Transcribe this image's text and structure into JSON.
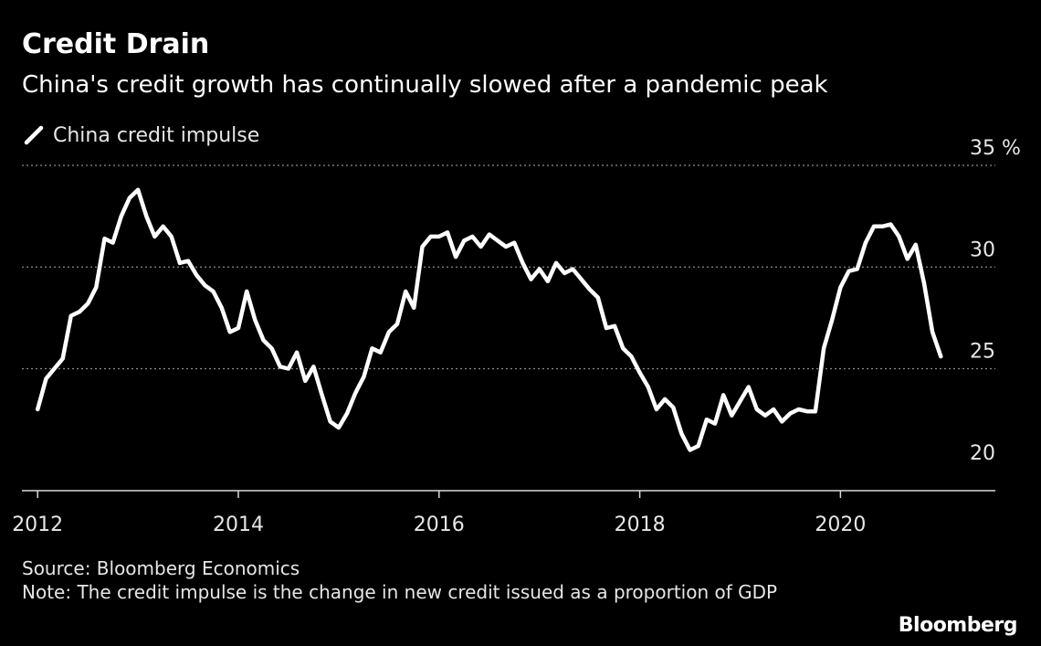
{
  "header": {
    "title": "Credit Drain",
    "subtitle": "China's credit growth has continually slowed after a pandemic peak"
  },
  "footer": {
    "source": "Source: Bloomberg Economics",
    "note": "Note: The credit impulse is the change in new credit issued as a proportion of GDP"
  },
  "brand": "Bloomberg",
  "chart_data": {
    "type": "line",
    "title": "Credit Drain",
    "subtitle": "China's credit growth has continually slowed after a pandemic peak",
    "xlabel": "",
    "ylabel": "",
    "y_unit": "%",
    "x_ticks": [
      "2012",
      "2014",
      "2016",
      "2018",
      "2020"
    ],
    "y_ticks": [
      20,
      25,
      30,
      35
    ],
    "xlim": [
      "2012-01",
      "2021-06"
    ],
    "ylim": [
      19,
      35
    ],
    "grid": "horizontal dotted",
    "axis_side": "right",
    "legend_placement": "top-left",
    "colors": {
      "background": "#000000",
      "line": "#ffffff",
      "grid": "#8c8c8c",
      "text": "#e6e6e6"
    },
    "series": [
      {
        "name": "China credit impulse",
        "points": [
          [
            "2012-01",
            23.0
          ],
          [
            "2012-02",
            24.5
          ],
          [
            "2012-03",
            25.0
          ],
          [
            "2012-04",
            25.5
          ],
          [
            "2012-05",
            27.6
          ],
          [
            "2012-06",
            27.8
          ],
          [
            "2012-07",
            28.2
          ],
          [
            "2012-08",
            29.0
          ],
          [
            "2012-09",
            31.4
          ],
          [
            "2012-10",
            31.2
          ],
          [
            "2012-11",
            32.5
          ],
          [
            "2012-12",
            33.4
          ],
          [
            "2013-01",
            33.8
          ],
          [
            "2013-02",
            32.5
          ],
          [
            "2013-03",
            31.5
          ],
          [
            "2013-04",
            32.0
          ],
          [
            "2013-05",
            31.5
          ],
          [
            "2013-06",
            30.2
          ],
          [
            "2013-07",
            30.3
          ],
          [
            "2013-08",
            29.6
          ],
          [
            "2013-09",
            29.1
          ],
          [
            "2013-10",
            28.8
          ],
          [
            "2013-11",
            28.0
          ],
          [
            "2013-12",
            26.8
          ],
          [
            "2014-01",
            27.0
          ],
          [
            "2014-02",
            28.8
          ],
          [
            "2014-03",
            27.4
          ],
          [
            "2014-04",
            26.4
          ],
          [
            "2014-05",
            26.0
          ],
          [
            "2014-06",
            25.1
          ],
          [
            "2014-07",
            25.0
          ],
          [
            "2014-08",
            25.8
          ],
          [
            "2014-09",
            24.4
          ],
          [
            "2014-10",
            25.1
          ],
          [
            "2014-11",
            23.7
          ],
          [
            "2014-12",
            22.4
          ],
          [
            "2015-01",
            22.1
          ],
          [
            "2015-02",
            22.8
          ],
          [
            "2015-03",
            23.8
          ],
          [
            "2015-04",
            24.6
          ],
          [
            "2015-05",
            26.0
          ],
          [
            "2015-06",
            25.8
          ],
          [
            "2015-07",
            26.8
          ],
          [
            "2015-08",
            27.2
          ],
          [
            "2015-09",
            28.8
          ],
          [
            "2015-10",
            28.0
          ],
          [
            "2015-11",
            31.0
          ],
          [
            "2015-12",
            31.5
          ],
          [
            "2016-01",
            31.5
          ],
          [
            "2016-02",
            31.7
          ],
          [
            "2016-03",
            30.5
          ],
          [
            "2016-04",
            31.3
          ],
          [
            "2016-05",
            31.5
          ],
          [
            "2016-06",
            31.0
          ],
          [
            "2016-07",
            31.6
          ],
          [
            "2016-08",
            31.3
          ],
          [
            "2016-09",
            31.0
          ],
          [
            "2016-10",
            31.2
          ],
          [
            "2016-11",
            30.2
          ],
          [
            "2016-12",
            29.4
          ],
          [
            "2017-01",
            29.9
          ],
          [
            "2017-02",
            29.3
          ],
          [
            "2017-03",
            30.2
          ],
          [
            "2017-04",
            29.7
          ],
          [
            "2017-05",
            29.9
          ],
          [
            "2017-06",
            29.4
          ],
          [
            "2017-07",
            28.9
          ],
          [
            "2017-08",
            28.5
          ],
          [
            "2017-09",
            27.0
          ],
          [
            "2017-10",
            27.1
          ],
          [
            "2017-11",
            26.0
          ],
          [
            "2017-12",
            25.6
          ],
          [
            "2018-01",
            24.8
          ],
          [
            "2018-02",
            24.1
          ],
          [
            "2018-03",
            23.0
          ],
          [
            "2018-04",
            23.5
          ],
          [
            "2018-05",
            23.1
          ],
          [
            "2018-06",
            21.8
          ],
          [
            "2018-07",
            21.0
          ],
          [
            "2018-08",
            21.2
          ],
          [
            "2018-09",
            22.5
          ],
          [
            "2018-10",
            22.3
          ],
          [
            "2018-11",
            23.7
          ],
          [
            "2018-12",
            22.7
          ],
          [
            "2019-01",
            23.4
          ],
          [
            "2019-02",
            24.1
          ],
          [
            "2019-03",
            23.0
          ],
          [
            "2019-04",
            22.7
          ],
          [
            "2019-05",
            23.0
          ],
          [
            "2019-06",
            22.4
          ],
          [
            "2019-07",
            22.8
          ],
          [
            "2019-08",
            23.0
          ],
          [
            "2019-09",
            22.9
          ],
          [
            "2019-10",
            22.9
          ],
          [
            "2019-11",
            26.0
          ],
          [
            "2019-12",
            27.4
          ],
          [
            "2020-01",
            29.0
          ],
          [
            "2020-02",
            29.8
          ],
          [
            "2020-03",
            29.9
          ],
          [
            "2020-04",
            31.2
          ],
          [
            "2020-05",
            32.0
          ],
          [
            "2020-06",
            32.0
          ],
          [
            "2020-07",
            32.1
          ],
          [
            "2020-08",
            31.5
          ],
          [
            "2020-09",
            30.4
          ],
          [
            "2020-10",
            31.1
          ],
          [
            "2020-11",
            29.2
          ],
          [
            "2020-12",
            26.8
          ],
          [
            "2021-01",
            25.6
          ]
        ]
      }
    ]
  }
}
